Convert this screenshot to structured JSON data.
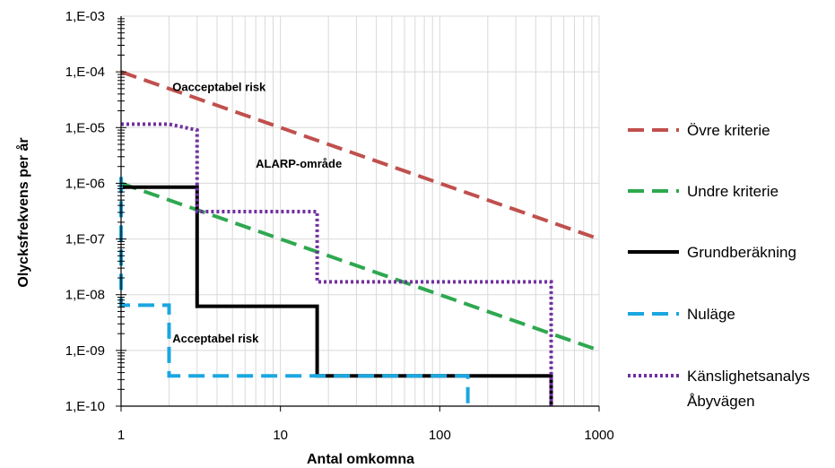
{
  "chart_data": {
    "type": "line",
    "xlabel": "Antal omkomna",
    "ylabel": "Olycksfrekvens per år",
    "x_scale": "log",
    "y_scale": "log",
    "xlim": [
      1,
      1000
    ],
    "ylim": [
      1e-10,
      0.001
    ],
    "grid": true,
    "legend_position": "right",
    "x_ticks": [
      {
        "value": 1,
        "label": "1"
      },
      {
        "value": 10,
        "label": "10"
      },
      {
        "value": 100,
        "label": "100"
      },
      {
        "value": 1000,
        "label": "1000"
      }
    ],
    "y_ticks": [
      {
        "value": 1e-10,
        "label": "1,E-10"
      },
      {
        "value": 1e-09,
        "label": "1,E-09"
      },
      {
        "value": 1e-08,
        "label": "1,E-08"
      },
      {
        "value": 1e-07,
        "label": "1,E-07"
      },
      {
        "value": 1e-06,
        "label": "1,E-06"
      },
      {
        "value": 1e-05,
        "label": "1,E-05"
      },
      {
        "value": 0.0001,
        "label": "1,E-04"
      },
      {
        "value": 0.001,
        "label": "1,E-03"
      }
    ],
    "annotations": [
      {
        "text": "Oacceptabel risk",
        "x": 2.1,
        "y": 4.5e-05
      },
      {
        "text": "ALARP-område",
        "x": 7.0,
        "y": 1.9e-06
      },
      {
        "text": "Acceptabel risk",
        "x": 2.1,
        "y": 1.4e-09
      }
    ],
    "series": [
      {
        "name": "Övre kriterie",
        "color": "#c0504d",
        "dash": "dashed",
        "points": [
          [
            1,
            0.0001
          ],
          [
            1000,
            1e-07
          ]
        ]
      },
      {
        "name": "Undre kriterie",
        "color": "#2ea84f",
        "dash": "dashed",
        "points": [
          [
            1,
            1e-06
          ],
          [
            1000,
            1e-09
          ]
        ]
      },
      {
        "name": "Grundberäkning",
        "color": "#000000",
        "dash": "solid",
        "points": [
          [
            1,
            8.5e-07
          ],
          [
            3,
            8.5e-07
          ],
          [
            3,
            6.2e-09
          ],
          [
            17,
            6.2e-09
          ],
          [
            17,
            3.5e-10
          ],
          [
            500,
            3.5e-10
          ],
          [
            500,
            1e-10
          ]
        ]
      },
      {
        "name": "Nuläge",
        "color": "#1aa7e0",
        "dash": "dashed",
        "points": [
          [
            1,
            1.3e-06
          ],
          [
            1,
            6.5e-09
          ],
          [
            2,
            6.5e-09
          ],
          [
            2,
            3.5e-10
          ],
          [
            150,
            3.5e-10
          ],
          [
            150,
            1e-10
          ]
        ]
      },
      {
        "name": "Känslighetsanalys Åbyvägen",
        "legend_lines": [
          "Känslighetsanalys",
          "Åbyvägen"
        ],
        "color": "#7030a0",
        "dash": "dotted",
        "points": [
          [
            1,
            1.15e-05
          ],
          [
            2,
            1.15e-05
          ],
          [
            3,
            9e-06
          ],
          [
            3,
            3.1e-07
          ],
          [
            17,
            3.1e-07
          ],
          [
            17,
            1.7e-08
          ],
          [
            500,
            1.7e-08
          ],
          [
            500,
            1e-10
          ]
        ]
      }
    ]
  }
}
